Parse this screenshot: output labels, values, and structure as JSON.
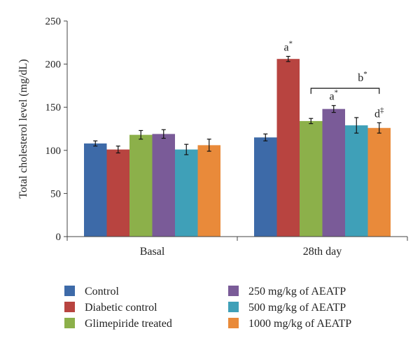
{
  "chart_data": {
    "type": "bar",
    "title": "",
    "xlabel": "",
    "ylabel": "Total cholesterol level (mg/dL)",
    "ylim": [
      0,
      250
    ],
    "yticks": [
      0,
      50,
      100,
      150,
      200,
      250
    ],
    "grid": false,
    "legend_position": "bottom",
    "categories": [
      "Basal",
      "28th day"
    ],
    "series": [
      {
        "name": "Control",
        "color": "#3D6AA8",
        "values": [
          108,
          115
        ],
        "errors": [
          3,
          4
        ]
      },
      {
        "name": "Diabetic control",
        "color": "#B84440",
        "values": [
          101,
          206
        ],
        "errors": [
          4,
          3
        ]
      },
      {
        "name": "Glimepiride treated",
        "color": "#8CB04A",
        "values": [
          118,
          134
        ],
        "errors": [
          5,
          3
        ]
      },
      {
        "name": "250 mg/kg of AEATP",
        "color": "#7A5B98",
        "values": [
          119,
          148
        ],
        "errors": [
          5,
          4
        ]
      },
      {
        "name": "500 mg/kg of AEATP",
        "color": "#3FA0B8",
        "values": [
          101,
          129
        ],
        "errors": [
          6,
          9
        ]
      },
      {
        "name": "1000 mg/kg of AEATP",
        "color": "#E98A3A",
        "values": [
          106,
          126
        ],
        "errors": [
          7,
          6
        ]
      }
    ],
    "annotations": [
      {
        "category": "28th day",
        "series": "Diabetic control",
        "text": "a",
        "sup": "*"
      },
      {
        "category": "28th day",
        "series": "250 mg/kg of AEATP",
        "text": "a",
        "sup": "*"
      },
      {
        "category": "28th day",
        "series": "1000 mg/kg of AEATP",
        "text": "d",
        "sup": "‡"
      },
      {
        "category": "28th day",
        "bracket_from": "Glimepriride treated",
        "bracket_to": "1000 mg/kg of AEATP",
        "text": "b",
        "sup": "*"
      }
    ]
  }
}
